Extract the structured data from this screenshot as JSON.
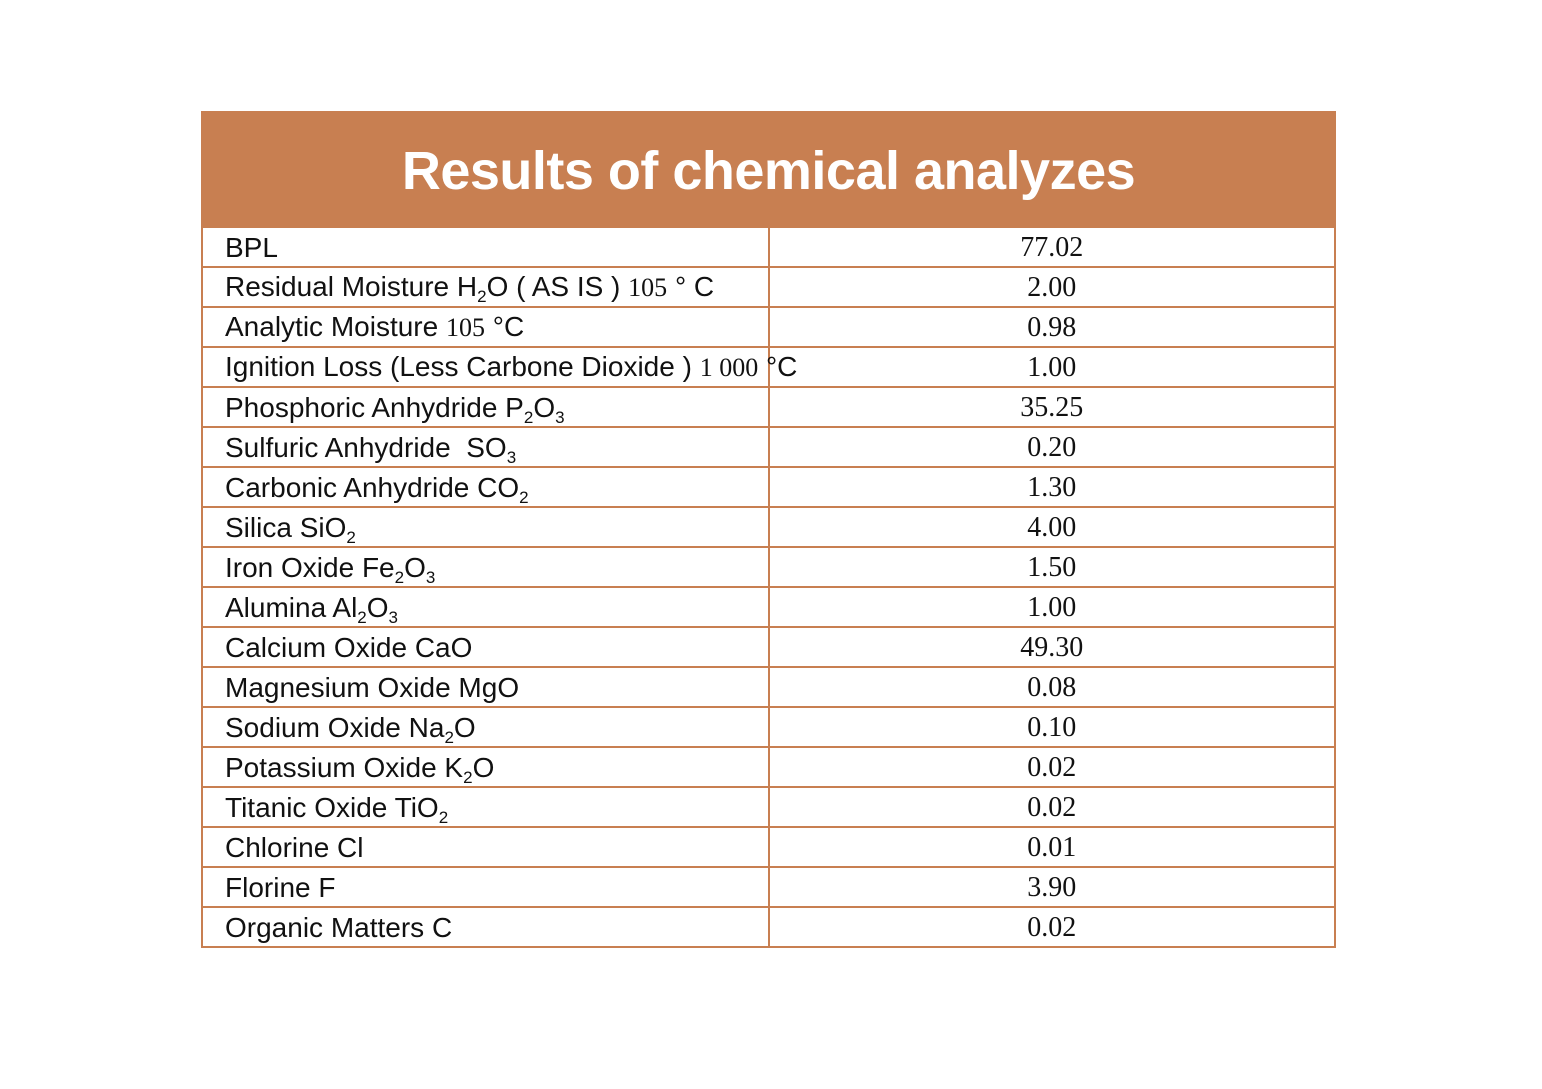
{
  "title": "Results of chemical analyzes",
  "colors": {
    "accent": "#c87f51",
    "header_text": "#ffffff",
    "body_text": "#111111"
  },
  "rows": [
    {
      "label": "BPL",
      "value": "77.02"
    },
    {
      "label": "Residual Moisture H",
      "sub1": "2",
      "label_b": "O ( AS IS ) ",
      "num": "105",
      "label_c": " ° C",
      "value": "2.00"
    },
    {
      "label": "Analytic Moisture ",
      "num": "105",
      "label_b": " °C",
      "value": "0.98"
    },
    {
      "label": "Ignition Loss (Less Carbone Dioxide ) ",
      "num": "1 000",
      "label_b": " °C",
      "value": "1.00"
    },
    {
      "label": "Phosphoric Anhydride P",
      "sub1": "2",
      "label_b": "O",
      "sub2": "3",
      "value": "35.25"
    },
    {
      "label": "Sulfuric Anhydride  SO",
      "sub1": "3",
      "value": "0.20"
    },
    {
      "label": "Carbonic Anhydride CO",
      "sub1": "2",
      "value": "1.30"
    },
    {
      "label": "Silica SiO",
      "sub1": "2",
      "value": "4.00"
    },
    {
      "label": "Iron Oxide Fe",
      "sub1": "2",
      "label_b": "O",
      "sub2": "3",
      "value": "1.50"
    },
    {
      "label": "Alumina Al",
      "sub1": "2",
      "label_b": "O",
      "sub2": "3",
      "value": "1.00"
    },
    {
      "label": "Calcium Oxide CaO",
      "value": "49.30"
    },
    {
      "label": "Magnesium Oxide MgO",
      "value": "0.08"
    },
    {
      "label": "Sodium Oxide Na",
      "sub1": "2",
      "label_b": "O",
      "value": "0.10"
    },
    {
      "label": "Potassium Oxide K",
      "sub1": "2",
      "label_b": "O",
      "value": "0.02"
    },
    {
      "label": "Titanic Oxide TiO",
      "sub1": "2",
      "value": "0.02"
    },
    {
      "label": "Chlorine Cl",
      "value": "0.01"
    },
    {
      "label": "Florine F",
      "value": "3.90"
    },
    {
      "label": "Organic Matters C",
      "value": "0.02"
    }
  ]
}
